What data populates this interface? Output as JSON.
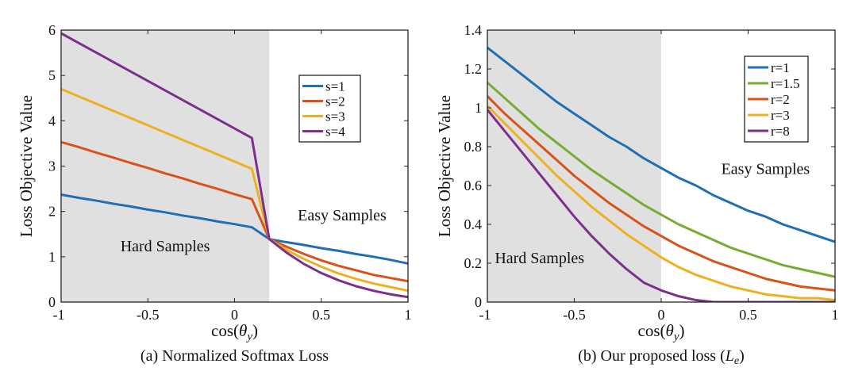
{
  "chart_data": [
    {
      "type": "line",
      "caption": "(a) Normalized Softmax Loss",
      "xlabel_prefix": "cos(",
      "xlabel_var": "θ",
      "xlabel_sub": "y",
      "xlabel_suffix": ")",
      "ylabel": "Loss Objective Value",
      "xlim": [
        -1,
        1
      ],
      "ylim": [
        0,
        6
      ],
      "xticks": [
        -1,
        -0.5,
        0,
        0.5,
        1
      ],
      "xtick_labels": [
        "-1",
        "-0.5",
        "0",
        "0.5",
        "1"
      ],
      "yticks": [
        0,
        1,
        2,
        3,
        4,
        5,
        6
      ],
      "ytick_labels": [
        "0",
        "1",
        "2",
        "3",
        "4",
        "5",
        "6"
      ],
      "shaded_region": [
        -1,
        0.2
      ],
      "annotations": [
        {
          "text": "Hard Samples",
          "x": -0.4,
          "y": 1.12
        },
        {
          "text": "Easy Samples",
          "x": 0.62,
          "y": 1.8
        }
      ],
      "legend_position": "top-right",
      "grid": false,
      "x": [
        -1,
        -0.9,
        -0.8,
        -0.7,
        -0.6,
        -0.5,
        -0.4,
        -0.3,
        -0.2,
        -0.1,
        0,
        0.1,
        0.2,
        0.3,
        0.4,
        0.5,
        0.6,
        0.7,
        0.8,
        0.9,
        1
      ],
      "series": [
        {
          "name": "s=1",
          "color": "#1f6fb5",
          "values": [
            2.37,
            2.3,
            2.24,
            2.17,
            2.11,
            2.04,
            1.98,
            1.91,
            1.85,
            1.78,
            1.72,
            1.65,
            1.39,
            1.32,
            1.26,
            1.19,
            1.13,
            1.06,
            1.0,
            0.93,
            0.85
          ]
        },
        {
          "name": "s=2",
          "color": "#d95319",
          "values": [
            3.53,
            3.42,
            3.3,
            3.19,
            3.07,
            2.96,
            2.84,
            2.73,
            2.61,
            2.5,
            2.38,
            2.27,
            1.39,
            1.22,
            1.06,
            0.92,
            0.8,
            0.7,
            0.6,
            0.53,
            0.46
          ]
        },
        {
          "name": "s=3",
          "color": "#edb120",
          "values": [
            4.7,
            4.54,
            4.38,
            4.22,
            4.06,
            3.9,
            3.74,
            3.58,
            3.42,
            3.26,
            3.1,
            2.94,
            1.39,
            1.15,
            0.95,
            0.78,
            0.63,
            0.51,
            0.41,
            0.33,
            0.25
          ]
        },
        {
          "name": "s=4",
          "color": "#7e2f8e",
          "values": [
            5.93,
            5.72,
            5.51,
            5.3,
            5.09,
            4.88,
            4.67,
            4.46,
            4.25,
            4.04,
            3.83,
            3.62,
            1.39,
            1.09,
            0.84,
            0.64,
            0.48,
            0.35,
            0.25,
            0.17,
            0.11
          ]
        }
      ]
    },
    {
      "type": "line",
      "caption_prefix": "(b) Our proposed loss (",
      "caption_var": "L",
      "caption_sub": "e",
      "caption_suffix": ")",
      "xlabel_prefix": "cos(",
      "xlabel_var": "θ",
      "xlabel_sub": "y",
      "xlabel_suffix": ")",
      "ylabel": "Loss Objective Value",
      "xlim": [
        -1,
        1
      ],
      "ylim": [
        0,
        1.4
      ],
      "xticks": [
        -1,
        -0.5,
        0,
        0.5,
        1
      ],
      "xtick_labels": [
        "-1",
        "-0.5",
        "0",
        "0.5",
        "1"
      ],
      "yticks": [
        0,
        0.2,
        0.4,
        0.6,
        0.8,
        1,
        1.2,
        1.4
      ],
      "ytick_labels": [
        "0",
        "0.2",
        "0.4",
        "0.6",
        "0.8",
        "1",
        "1.2",
        "1.4"
      ],
      "shaded_region": [
        -1,
        0
      ],
      "annotations": [
        {
          "text": "Hard Samples",
          "x": -0.7,
          "y": 0.2
        },
        {
          "text": "Easy Samples",
          "x": 0.6,
          "y": 0.66
        }
      ],
      "legend_position": "top-right",
      "grid": false,
      "x": [
        -1,
        -0.9,
        -0.8,
        -0.7,
        -0.6,
        -0.5,
        -0.4,
        -0.3,
        -0.2,
        -0.1,
        0,
        0.1,
        0.2,
        0.3,
        0.4,
        0.5,
        0.6,
        0.7,
        0.8,
        0.9,
        1
      ],
      "series": [
        {
          "name": "r=1",
          "color": "#1f6fb5",
          "values": [
            1.31,
            1.24,
            1.17,
            1.1,
            1.03,
            0.97,
            0.91,
            0.85,
            0.8,
            0.74,
            0.69,
            0.64,
            0.6,
            0.55,
            0.51,
            0.47,
            0.44,
            0.4,
            0.37,
            0.34,
            0.31
          ]
        },
        {
          "name": "r=1.5",
          "color": "#77ac30",
          "values": [
            1.13,
            1.05,
            0.97,
            0.89,
            0.82,
            0.75,
            0.68,
            0.62,
            0.56,
            0.5,
            0.45,
            0.4,
            0.36,
            0.32,
            0.28,
            0.25,
            0.22,
            0.19,
            0.17,
            0.15,
            0.13
          ]
        },
        {
          "name": "r=2",
          "color": "#d95319",
          "values": [
            1.06,
            0.97,
            0.89,
            0.81,
            0.73,
            0.65,
            0.58,
            0.51,
            0.45,
            0.39,
            0.34,
            0.29,
            0.25,
            0.21,
            0.18,
            0.15,
            0.12,
            0.1,
            0.08,
            0.07,
            0.06
          ]
        },
        {
          "name": "r=3",
          "color": "#edb120",
          "values": [
            1.01,
            0.92,
            0.83,
            0.74,
            0.65,
            0.57,
            0.49,
            0.42,
            0.35,
            0.29,
            0.23,
            0.18,
            0.14,
            0.11,
            0.08,
            0.06,
            0.04,
            0.03,
            0.02,
            0.02,
            0.01
          ]
        },
        {
          "name": "r=8",
          "color": "#7e2f8e",
          "values": [
            0.99,
            0.88,
            0.77,
            0.66,
            0.55,
            0.44,
            0.34,
            0.25,
            0.17,
            0.1,
            0.06,
            0.03,
            0.01,
            0.0,
            0.0,
            0.0,
            0.0,
            0.0,
            0.0,
            0.0,
            0.0
          ]
        }
      ]
    }
  ]
}
